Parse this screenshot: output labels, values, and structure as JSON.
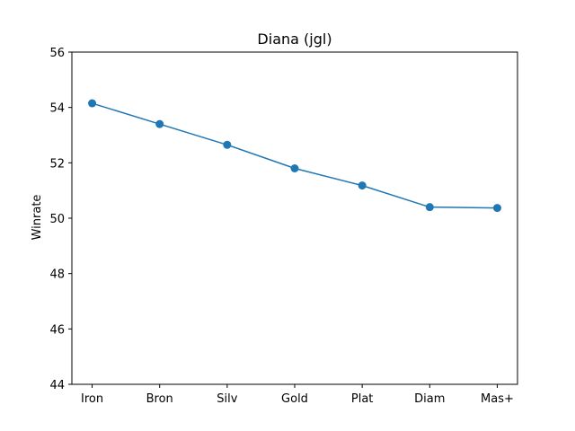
{
  "chart_data": {
    "type": "line",
    "title": "Diana (jgl)",
    "xlabel": "",
    "ylabel": "Winrate",
    "categories": [
      "Iron",
      "Bron",
      "Silv",
      "Gold",
      "Plat",
      "Diam",
      "Mas+"
    ],
    "series": [
      {
        "values": [
          54.15,
          53.4,
          52.65,
          51.8,
          51.18,
          50.4,
          50.37
        ],
        "color": "#1f77b4",
        "marker": "circle"
      }
    ],
    "ylim": [
      44,
      56
    ],
    "yticks": [
      44,
      46,
      48,
      50,
      52,
      54,
      56
    ],
    "grid": false,
    "legend": "none"
  }
}
